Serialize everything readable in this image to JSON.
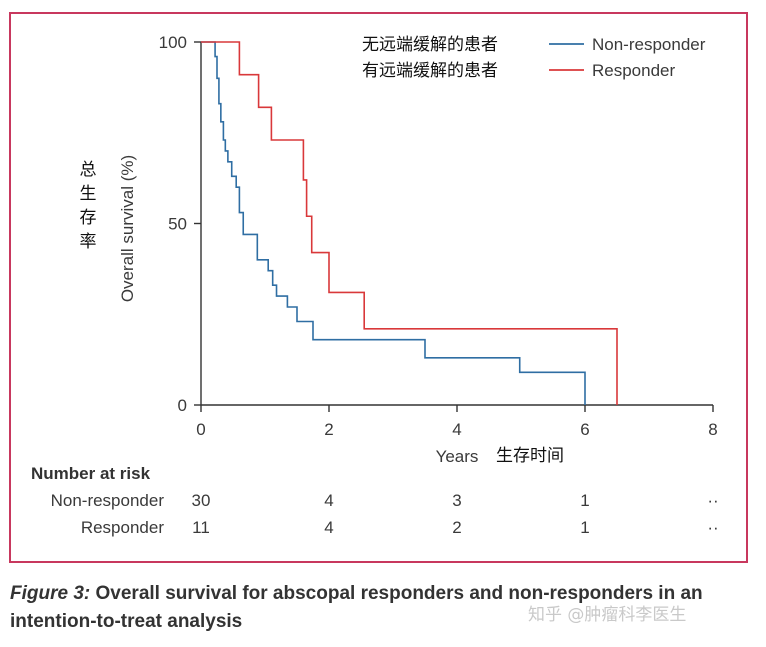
{
  "chart_data": {
    "type": "line",
    "step": true,
    "ylabel": "Overall survival (%)",
    "ylabel_cn": "总生存率",
    "xlabel": "Years",
    "xlabel_cn": "生存时间",
    "xlim": [
      0,
      8
    ],
    "ylim": [
      0,
      100
    ],
    "xticks": [
      "0",
      "2",
      "4",
      "6",
      "8"
    ],
    "yticks": [
      "0",
      "50",
      "100"
    ],
    "legend_position": "top-right",
    "series": [
      {
        "name": "Non-responder",
        "label_cn": "无远端缓解的患者",
        "color": "#2f6ea3",
        "x": [
          0,
          0.22,
          0.25,
          0.28,
          0.31,
          0.35,
          0.38,
          0.42,
          0.48,
          0.55,
          0.6,
          0.66,
          0.72,
          0.88,
          1.05,
          1.12,
          1.18,
          1.35,
          1.5,
          1.75,
          3.5,
          4.98,
          6.0
        ],
        "y": [
          100,
          96,
          90,
          83,
          78,
          73,
          70,
          67,
          63,
          60,
          53,
          47,
          47,
          40,
          37,
          33,
          30,
          27,
          23,
          18,
          13,
          9,
          0
        ]
      },
      {
        "name": "Responder",
        "label_cn": "有远端缓解的患者",
        "color": "#d9383a",
        "x": [
          0,
          0.6,
          0.9,
          1.1,
          1.6,
          1.65,
          1.73,
          2.0,
          2.55,
          6.5
        ],
        "y": [
          100,
          91,
          82,
          73,
          62,
          52,
          42,
          31,
          21,
          0
        ]
      }
    ]
  },
  "risk_table": {
    "title": "Number at risk",
    "rows": [
      {
        "label": "Non-responder",
        "values": [
          "30",
          "4",
          "3",
          "1",
          "··"
        ]
      },
      {
        "label": "Responder",
        "values": [
          "11",
          "4",
          "2",
          "1",
          "··"
        ]
      }
    ]
  },
  "caption": {
    "figure_label": "Figure 3:",
    "text": " Overall survival for abscopal responders and non-responders in an intention-to-treat analysis"
  },
  "watermark": "知乎 @肿瘤科李医生"
}
